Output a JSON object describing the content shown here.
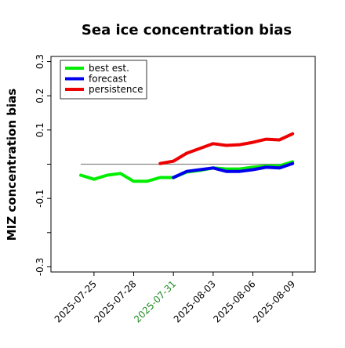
{
  "chart_data": {
    "type": "line",
    "title": "Sea ice concentration bias",
    "y_label": "MIZ concentration bias",
    "x": [
      "2025-07-24",
      "2025-07-25",
      "2025-07-26",
      "2025-07-27",
      "2025-07-28",
      "2025-07-29",
      "2025-07-30",
      "2025-07-31",
      "2025-08-01",
      "2025-08-02",
      "2025-08-03",
      "2025-08-04",
      "2025-08-05",
      "2025-08-06",
      "2025-08-07",
      "2025-08-08",
      "2025-08-09"
    ],
    "series": [
      {
        "name": "best est.",
        "color": "#00ee00",
        "values": [
          -0.032,
          -0.044,
          -0.032,
          -0.027,
          -0.05,
          -0.05,
          -0.039,
          -0.039,
          -0.023,
          -0.018,
          -0.011,
          -0.014,
          -0.014,
          -0.009,
          -0.005,
          -0.005,
          0.007
        ]
      },
      {
        "name": "forecast",
        "color": "#0000ee",
        "values": [
          null,
          null,
          null,
          null,
          null,
          null,
          null,
          -0.039,
          -0.021,
          -0.016,
          -0.011,
          -0.021,
          -0.021,
          -0.016,
          -0.009,
          -0.011,
          0.002
        ]
      },
      {
        "name": "persistence",
        "color": "#ee0000",
        "values": [
          null,
          null,
          null,
          null,
          null,
          null,
          0.002,
          0.009,
          0.032,
          0.046,
          0.06,
          0.055,
          0.057,
          0.064,
          0.073,
          0.071,
          0.089
        ]
      }
    ],
    "xlim": [
      "2025-07-21T18:00Z",
      "2025-08-10T17:00Z"
    ],
    "xticks": [
      "2025-07-25",
      "2025-07-28",
      "2025-07-31",
      "2025-08-03",
      "2025-08-06",
      "2025-08-09"
    ],
    "highlight_xtick": "2025-07-31",
    "highlight_color": "#228b22",
    "ylim": [
      -0.315,
      0.315
    ],
    "yticks": [
      0.3,
      0.2,
      0.1,
      {
        "value": 0,
        "label": null
      },
      -0.1,
      {
        "value": -0.2,
        "label": null
      },
      -0.3
    ],
    "hline": 0,
    "hline_color": "#888888",
    "legend": "upper left"
  }
}
